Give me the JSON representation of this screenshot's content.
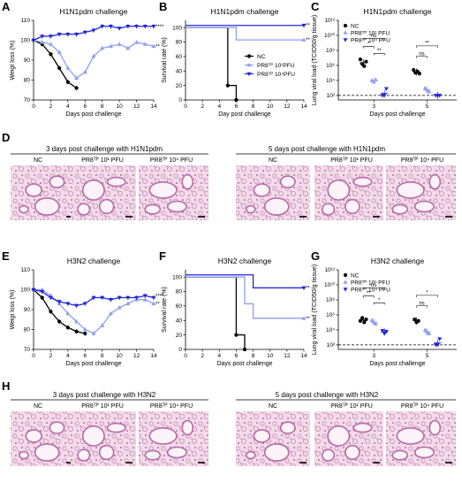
{
  "colors": {
    "nc": "#000000",
    "low": "#8f9ef0",
    "high": "#2326d6",
    "tissue": "#e9b9d6",
    "stain": "#b86aa5"
  },
  "panels": {
    "A": "A",
    "B": "B",
    "C": "C",
    "D": "D",
    "E": "E",
    "F": "F",
    "G": "G",
    "H": "H"
  },
  "chart_data": [
    {
      "id": "A",
      "type": "line",
      "title": "H1N1pdm challenge",
      "xlabel": "Days post challenge",
      "ylabel": "Weigt loss (%)",
      "xlim": [
        0,
        14
      ],
      "ylim": [
        70,
        110
      ],
      "xticks": [
        0,
        2,
        4,
        6,
        8,
        10,
        12,
        14
      ],
      "yticks": [
        70,
        80,
        90,
        100,
        110
      ],
      "series": [
        {
          "key": "nc",
          "x": [
            0,
            1,
            2,
            3,
            4,
            5
          ],
          "y": [
            100,
            98,
            93,
            86,
            79,
            76
          ]
        },
        {
          "key": "low",
          "x": [
            0,
            1,
            2,
            3,
            4,
            5,
            6,
            7,
            8,
            9,
            10,
            11,
            12,
            13,
            14
          ],
          "y": [
            100,
            99,
            98,
            94,
            86,
            81,
            84,
            92,
            96,
            97,
            98,
            96,
            99,
            98,
            97
          ]
        },
        {
          "key": "high",
          "x": [
            0,
            1,
            2,
            3,
            4,
            5,
            6,
            7,
            8,
            9,
            10,
            11,
            12,
            13,
            14
          ],
          "y": [
            100,
            102,
            102,
            103,
            103,
            103,
            104,
            105,
            107,
            107,
            106,
            107,
            107,
            107,
            107
          ]
        }
      ],
      "sig": [
        {
          "text": "****",
          "y": 107
        },
        {
          "text": "**",
          "y": 97
        }
      ]
    },
    {
      "id": "B",
      "type": "line",
      "title": "H1N1pdm challenge",
      "xlabel": "Day post challenge",
      "ylabel": "Survival rate (%)",
      "xlim": [
        0,
        14
      ],
      "ylim": [
        0,
        110
      ],
      "xticks": [
        0,
        2,
        4,
        6,
        8,
        10,
        12,
        14
      ],
      "yticks": [
        0,
        20,
        40,
        60,
        80,
        100
      ],
      "series": [
        {
          "key": "nc",
          "x": [
            0,
            5,
            5,
            6,
            6
          ],
          "y": [
            100,
            100,
            20,
            20,
            0
          ]
        },
        {
          "key": "low",
          "x": [
            0,
            6,
            6,
            14
          ],
          "y": [
            100,
            100,
            83,
            83
          ]
        },
        {
          "key": "high",
          "x": [
            0,
            14
          ],
          "y": [
            103,
            103
          ]
        }
      ],
      "sig": [
        {
          "text": "**",
          "y": 103
        },
        {
          "text": "**",
          "y": 83
        }
      ],
      "legend": [
        "NC",
        "PR8ᵀᴾ 10¹PFU",
        "PR8ᵀᴾ 10⁴PFU"
      ]
    },
    {
      "id": "C",
      "type": "scatter",
      "title": "H1N1pdm challenge",
      "xlabel": "Days post challenge",
      "ylabel": "Lung viral load (TCID50/g tissue)",
      "categories": [
        "3",
        "5"
      ],
      "yticks": [
        "10¹²",
        "10¹⁰",
        "10⁸",
        "10⁶",
        "10⁴",
        "10²"
      ],
      "ylim_log": [
        2,
        12
      ],
      "detection_limit": 2,
      "series": [
        {
          "key": "nc",
          "groups": [
            [
              6.8,
              6.2,
              5.9,
              6.5
            ],
            [
              5.4,
              5.0,
              5.2,
              4.9
            ]
          ]
        },
        {
          "key": "low",
          "groups": [
            [
              4.0,
              3.8,
              4.1
            ],
            [
              3.0,
              2.7,
              2.5
            ]
          ]
        },
        {
          "key": "high",
          "groups": [
            [
              2.0,
              2.0,
              2.9
            ],
            [
              2.0,
              2.0,
              2.0
            ]
          ]
        }
      ],
      "sig": [
        "*",
        "ns",
        "**",
        "**",
        "ns"
      ],
      "legend": [
        "NC",
        "PR8ᵀᴾ 10¹ PFU",
        "PR8ᵀᴾ 10⁴ PFU"
      ]
    },
    {
      "id": "E",
      "type": "line",
      "title": "H3N2 challenge",
      "xlabel": "Days post challenge",
      "ylabel": "Weigt loss (%)",
      "xlim": [
        0,
        14
      ],
      "ylim": [
        70,
        110
      ],
      "xticks": [
        0,
        2,
        4,
        6,
        8,
        10,
        12,
        14
      ],
      "yticks": [
        70,
        80,
        90,
        100,
        110
      ],
      "series": [
        {
          "key": "nc",
          "x": [
            0,
            1,
            2,
            3,
            4,
            5,
            6
          ],
          "y": [
            100,
            96,
            89,
            84,
            81,
            79,
            78
          ]
        },
        {
          "key": "low",
          "x": [
            0,
            1,
            2,
            3,
            4,
            5,
            6,
            7,
            8,
            9,
            10,
            11,
            12,
            13,
            14
          ],
          "y": [
            100,
            100,
            97,
            93,
            88,
            84,
            80,
            78,
            82,
            88,
            91,
            93,
            95,
            95,
            93
          ]
        },
        {
          "key": "high",
          "x": [
            0,
            1,
            2,
            3,
            4,
            5,
            6,
            7,
            8,
            9,
            10,
            11,
            12,
            13,
            14
          ],
          "y": [
            100,
            99,
            96,
            94,
            93,
            92,
            93,
            96,
            96,
            95,
            96,
            96,
            96,
            97,
            96
          ]
        }
      ],
      "sig": [
        {
          "text": "****",
          "y": 97
        },
        {
          "text": "**",
          "y": 93
        }
      ]
    },
    {
      "id": "F",
      "type": "line",
      "title": "H3N2 challenge",
      "xlabel": "Days post challenge",
      "ylabel": "Survival rate (%)",
      "xlim": [
        0,
        14
      ],
      "ylim": [
        0,
        110
      ],
      "xticks": [
        0,
        2,
        4,
        6,
        8,
        10,
        12,
        14
      ],
      "yticks": [
        0,
        20,
        40,
        60,
        80,
        100
      ],
      "series": [
        {
          "key": "nc",
          "x": [
            0,
            6,
            6,
            7,
            7
          ],
          "y": [
            100,
            100,
            20,
            20,
            0
          ]
        },
        {
          "key": "low",
          "x": [
            0,
            7,
            7,
            8,
            8,
            14
          ],
          "y": [
            100,
            100,
            63,
            63,
            43,
            43
          ]
        },
        {
          "key": "high",
          "x": [
            0,
            8,
            8,
            14
          ],
          "y": [
            103,
            103,
            85,
            85
          ]
        }
      ],
      "sig": [
        {
          "text": "**",
          "y": 85
        },
        {
          "text": "**",
          "y": 43
        }
      ]
    },
    {
      "id": "G",
      "type": "scatter",
      "title": "H3N2 challenge",
      "xlabel": "Days post challenge",
      "ylabel": "Lung viral load (TCID50/g tissue)",
      "categories": [
        "3",
        "5"
      ],
      "yticks": [
        "10¹²",
        "10¹⁰",
        "10⁸",
        "10⁶",
        "10⁴",
        "10²"
      ],
      "ylim_log": [
        2,
        12
      ],
      "detection_limit": 2,
      "series": [
        {
          "key": "nc",
          "groups": [
            [
              5.2,
              5.6,
              5.0,
              5.4
            ],
            [
              5.4,
              5.0,
              5.2
            ]
          ]
        },
        {
          "key": "low",
          "groups": [
            [
              5.3,
              5.0,
              4.8
            ],
            [
              4.0,
              3.7,
              3.5
            ]
          ]
        },
        {
          "key": "high",
          "groups": [
            [
              3.9,
              3.5,
              3.8
            ],
            [
              2.0,
              2.0,
              2.8
            ]
          ]
        }
      ],
      "sig": [
        "**",
        "ns",
        "*",
        "*",
        "ns"
      ],
      "legend": [
        "NC",
        "PR8ᵀᴾ 10¹ PFU",
        "PR8ᵀᴾ 10⁴ PFU"
      ]
    }
  ],
  "histology": {
    "D": {
      "left_title": "3 days post challenge with H1N1pdm",
      "right_title": "5 days post challenge with H1N1pdm",
      "labels": [
        "NC",
        "PR8ᵀᴾ 10¹ PFU",
        "PR8ᵀᴾ 10⁴ PFU",
        "NC",
        "PR8ᵀᴾ 10¹ PFU",
        "PR8ᵀᴾ 10⁴ PFU"
      ]
    },
    "H": {
      "left_title": "3 days post challenge with H3N2",
      "right_title": "5 days post challenge with H3N2",
      "labels": [
        "NC",
        "PR8ᵀᴾ 10¹ PFU",
        "PR8ᵀᴾ 10⁴ PFU",
        "NC",
        "PR8ᵀᴾ 10¹ PFU",
        "PR8ᵀᴾ 10⁴ PFU"
      ]
    }
  }
}
